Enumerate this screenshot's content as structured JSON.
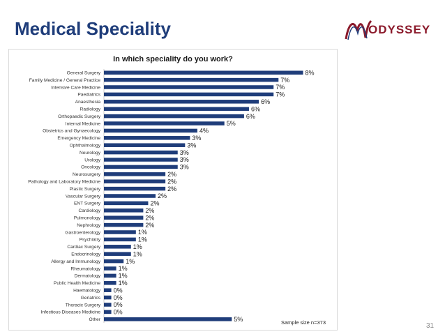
{
  "slide": {
    "title": "Medical Speciality",
    "page_number": "31",
    "logo_text": "ODYSSEY"
  },
  "colors": {
    "title": "#1f3d7a",
    "bar": "#1f3d7a",
    "logo": "#8b1a2b"
  },
  "chart_data": {
    "type": "bar",
    "orientation": "horizontal",
    "title": "In which speciality do you work?",
    "note": "Sample size n=373",
    "xlim": [
      0,
      8
    ],
    "categories": [
      "General Surgery",
      "Family Medicine / General Practice",
      "Intensive Care Medicine",
      "Paediatrics",
      "Anaesthesia",
      "Radiology",
      "Orthopaedic Surgery",
      "Internal Medicine",
      "Obstetrics and Gynaecology",
      "Emergency Medicine",
      "Ophthalmology",
      "Neurology",
      "Urology",
      "Oncology",
      "Neurosurgery",
      "Pathology and Laboratory Medicine",
      "Plastic Surgery",
      "Vascular Surgery",
      "ENT Surgery",
      "Cardiology",
      "Pulmonology",
      "Nephrology",
      "Gastroenterology",
      "Psychiatry",
      "Cardiac Surgery",
      "Endocrinology",
      "Allergy and Immunology",
      "Rheumatology",
      "Dermatology",
      "Public Health Medicine",
      "Haematology",
      "Geriatrics",
      "Thoracic Surgery",
      "Infectious Diseases Medicine",
      "Other"
    ],
    "values": [
      8.1,
      7.1,
      6.9,
      6.9,
      6.3,
      5.9,
      5.7,
      4.9,
      3.8,
      3.5,
      3.3,
      3.0,
      3.0,
      3.0,
      2.5,
      2.5,
      2.5,
      2.1,
      1.8,
      1.6,
      1.6,
      1.6,
      1.3,
      1.3,
      1.1,
      1.1,
      0.8,
      0.5,
      0.5,
      0.5,
      0.3,
      0.3,
      0.3,
      0.3,
      5.2
    ],
    "value_labels": [
      "8%",
      "7%",
      "7%",
      "7%",
      "6%",
      "6%",
      "6%",
      "5%",
      "4%",
      "3%",
      "3%",
      "3%",
      "3%",
      "3%",
      "2%",
      "2%",
      "2%",
      "2%",
      "2%",
      "2%",
      "2%",
      "2%",
      "1%",
      "1%",
      "1%",
      "1%",
      "1%",
      "1%",
      "1%",
      "1%",
      "0%",
      "0%",
      "0%",
      "0%",
      "5%"
    ]
  }
}
